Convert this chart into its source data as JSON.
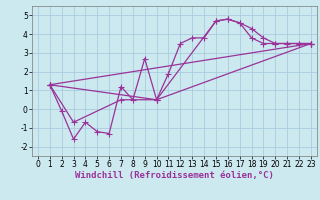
{
  "background_color": "#cce9f0",
  "grid_color": "#aaccdd",
  "line_color": "#993399",
  "marker": "+",
  "markersize": 4,
  "linewidth": 0.9,
  "xlabel": "Windchill (Refroidissement éolien,°C)",
  "xlabel_fontsize": 6.5,
  "tick_fontsize": 5.5,
  "xlim": [
    -0.5,
    23.5
  ],
  "ylim": [
    -2.5,
    5.5
  ],
  "yticks": [
    -2,
    -1,
    0,
    1,
    2,
    3,
    4,
    5
  ],
  "xticks": [
    0,
    1,
    2,
    3,
    4,
    5,
    6,
    7,
    8,
    9,
    10,
    11,
    12,
    13,
    14,
    15,
    16,
    17,
    18,
    19,
    20,
    21,
    22,
    23
  ],
  "series": [
    {
      "x": [
        1,
        2,
        3,
        4,
        5,
        6,
        7,
        8,
        9,
        10,
        11,
        12,
        13,
        14,
        15,
        16,
        17,
        18,
        19,
        20,
        21,
        22,
        23
      ],
      "y": [
        1.3,
        -0.1,
        -1.6,
        -0.7,
        -1.2,
        -1.3,
        1.2,
        0.5,
        2.7,
        0.5,
        1.9,
        3.5,
        3.8,
        3.8,
        4.7,
        4.8,
        4.6,
        4.3,
        3.8,
        3.5,
        3.5,
        3.5,
        3.5
      ]
    },
    {
      "x": [
        1,
        3,
        7,
        10,
        15,
        16,
        17,
        18,
        19,
        20,
        21,
        22,
        23
      ],
      "y": [
        1.3,
        -0.7,
        0.5,
        0.5,
        4.7,
        4.8,
        4.6,
        3.8,
        3.5,
        3.5,
        3.5,
        3.5,
        3.5
      ]
    },
    {
      "x": [
        1,
        10,
        23
      ],
      "y": [
        1.3,
        0.5,
        3.5
      ]
    },
    {
      "x": [
        1,
        23
      ],
      "y": [
        1.3,
        3.5
      ]
    }
  ]
}
